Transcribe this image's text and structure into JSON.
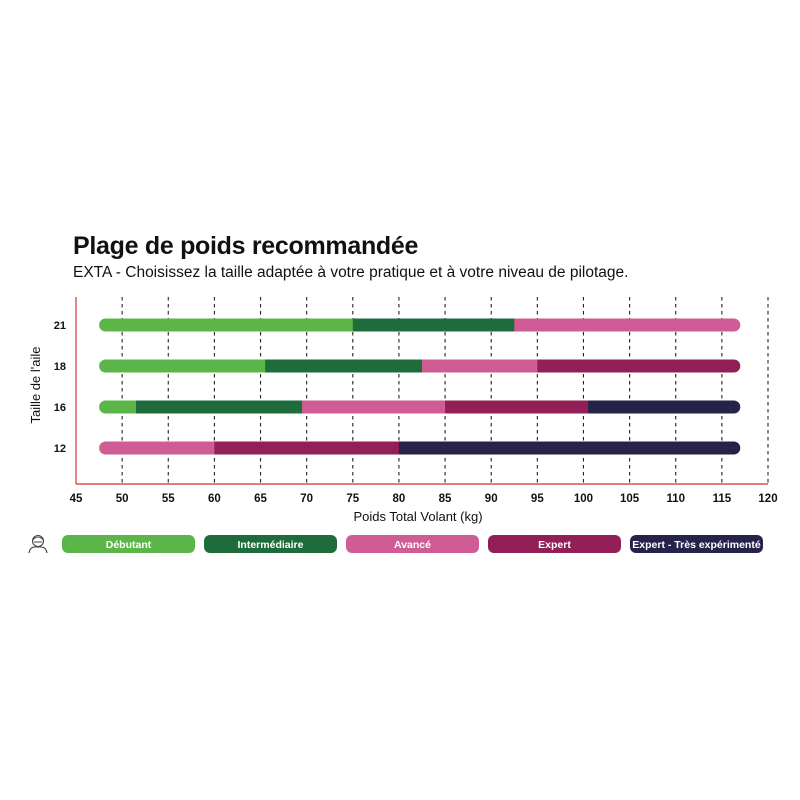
{
  "chart_data": {
    "type": "bar",
    "title": "Plage de poids recommandée",
    "subtitle": "EXTA - Choisissez la taille adaptée à votre pratique et à votre niveau de pilotage.",
    "xlabel": "Poids Total Volant (kg)",
    "ylabel": "Taille de l'aile",
    "xlim": [
      45,
      120
    ],
    "xticks": [
      45,
      50,
      55,
      60,
      65,
      70,
      75,
      80,
      85,
      90,
      95,
      100,
      105,
      110,
      115,
      120
    ],
    "grid": "vertical-dashed",
    "levels": [
      {
        "name": "Débutant",
        "color": "#5cb548"
      },
      {
        "name": "Intermédiaire",
        "color": "#1e6b3c"
      },
      {
        "name": "Avancé",
        "color": "#cf5c94"
      },
      {
        "name": "Expert",
        "color": "#921f55"
      },
      {
        "name": "Expert - Très expérimenté",
        "color": "#25234a"
      }
    ],
    "rows": [
      {
        "size": "21",
        "segments": [
          [
            47.5,
            75,
            0
          ],
          [
            75,
            92.5,
            1
          ],
          [
            92.5,
            117,
            2
          ]
        ]
      },
      {
        "size": "18",
        "segments": [
          [
            47.5,
            65.5,
            0
          ],
          [
            65.5,
            82.5,
            1
          ],
          [
            82.5,
            95,
            2
          ],
          [
            95,
            117,
            3
          ]
        ]
      },
      {
        "size": "16",
        "segments": [
          [
            47.5,
            51.5,
            0
          ],
          [
            51.5,
            69.5,
            1
          ],
          [
            69.5,
            85,
            2
          ],
          [
            85,
            100.5,
            3
          ],
          [
            100.5,
            117,
            4
          ]
        ]
      },
      {
        "size": "12",
        "segments": [
          [
            47.5,
            60,
            2
          ],
          [
            60,
            80,
            3
          ],
          [
            80,
            117,
            4
          ]
        ]
      }
    ],
    "legend_position": "bottom"
  },
  "legend": {
    "icon": "pilot-helmet-icon"
  }
}
